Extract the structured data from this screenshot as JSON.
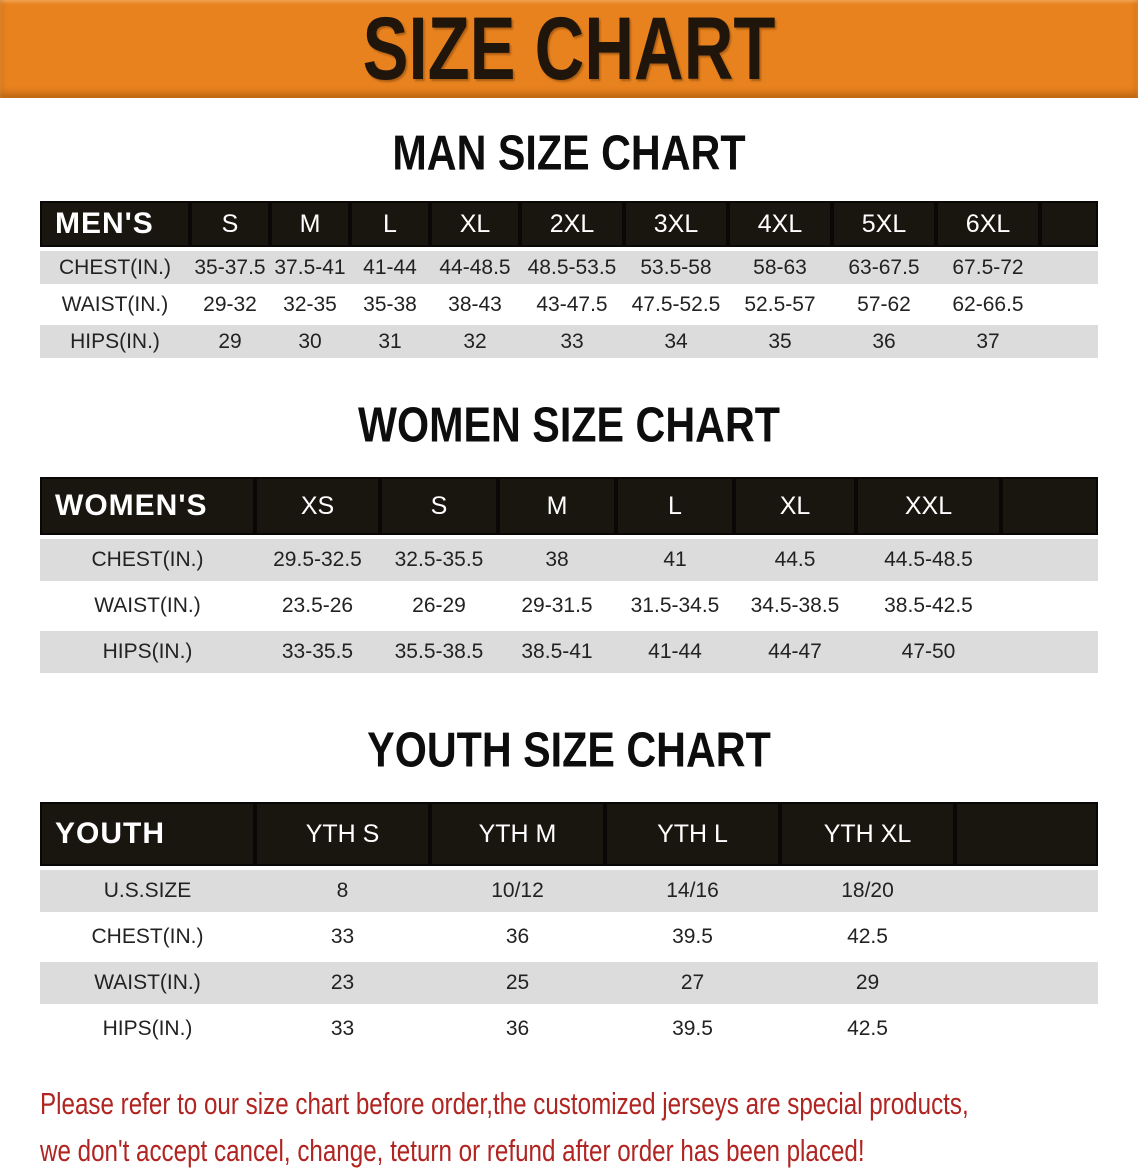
{
  "banner": {
    "title": "SIZE CHART",
    "bg_color": "#e8821e",
    "title_color": "#20150a"
  },
  "tables": [
    {
      "id": "men",
      "title": "MAN SIZE CHART",
      "header_label": "MEN'S",
      "sizes": [
        "S",
        "M",
        "L",
        "XL",
        "2XL",
        "3XL",
        "4XL",
        "5XL",
        "6XL"
      ],
      "rows": [
        {
          "label": "CHEST(IN.)",
          "values": [
            "35-37.5",
            "37.5-41",
            "41-44",
            "44-48.5",
            "48.5-53.5",
            "53.5-58",
            "58-63",
            "63-67.5",
            "67.5-72"
          ]
        },
        {
          "label": "WAIST(IN.)",
          "values": [
            "29-32",
            "32-35",
            "35-38",
            "38-43",
            "43-47.5",
            "47.5-52.5",
            "52.5-57",
            "57-62",
            "62-66.5"
          ]
        },
        {
          "label": "HIPS(IN.)",
          "values": [
            "29",
            "30",
            "31",
            "32",
            "33",
            "34",
            "35",
            "36",
            "37"
          ]
        }
      ]
    },
    {
      "id": "women",
      "title": "WOMEN SIZE CHART",
      "header_label": "WOMEN'S",
      "sizes": [
        "XS",
        "S",
        "M",
        "L",
        "XL",
        "XXL"
      ],
      "rows": [
        {
          "label": "CHEST(IN.)",
          "values": [
            "29.5-32.5",
            "32.5-35.5",
            "38",
            "41",
            "44.5",
            "44.5-48.5"
          ]
        },
        {
          "label": "WAIST(IN.)",
          "values": [
            "23.5-26",
            "26-29",
            "29-31.5",
            "31.5-34.5",
            "34.5-38.5",
            "38.5-42.5"
          ]
        },
        {
          "label": "HIPS(IN.)",
          "values": [
            "33-35.5",
            "35.5-38.5",
            "38.5-41",
            "41-44",
            "44-47",
            "47-50"
          ]
        }
      ]
    },
    {
      "id": "youth",
      "title": "YOUTH SIZE CHART",
      "header_label": "YOUTH",
      "sizes": [
        "YTH S",
        "YTH M",
        "YTH L",
        "YTH XL"
      ],
      "rows": [
        {
          "label": "U.S.SIZE",
          "values": [
            "8",
            "10/12",
            "14/16",
            "18/20"
          ]
        },
        {
          "label": "CHEST(IN.)",
          "values": [
            "33",
            "36",
            "39.5",
            "42.5"
          ]
        },
        {
          "label": "WAIST(IN.)",
          "values": [
            "23",
            "25",
            "27",
            "29"
          ]
        },
        {
          "label": "HIPS(IN.)",
          "values": [
            "33",
            "36",
            "39.5",
            "42.5"
          ]
        }
      ]
    }
  ],
  "note": {
    "lines": [
      "Please refer to our size chart before order,the customized jerseys are special products,",
      "we don't accept cancel, change, teturn or refund after order has been placed!"
    ],
    "color": "#b02421"
  },
  "colors": {
    "header_bg": "#19150f",
    "header_text": "#ffffff",
    "row_alt_bg": "#dcdcdc",
    "row_text": "#222222"
  }
}
